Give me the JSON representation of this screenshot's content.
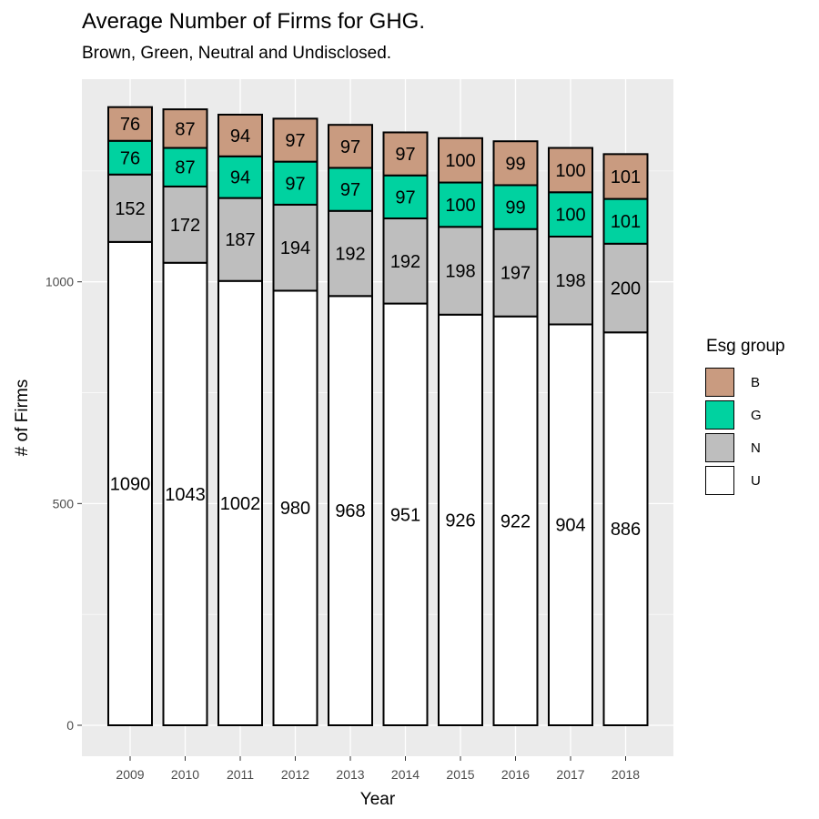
{
  "chart_data": {
    "type": "bar",
    "stacked": true,
    "title": "Average Number of Firms for GHG.",
    "subtitle": "Brown, Green, Neutral and Undisclosed.",
    "xlabel": "Year",
    "ylabel": "# of Firms",
    "categories": [
      "2009",
      "2010",
      "2011",
      "2012",
      "2013",
      "2014",
      "2015",
      "2016",
      "2017",
      "2018"
    ],
    "y_ticks": [
      "0",
      "500",
      "1000"
    ],
    "ylim": [
      -70,
      1450
    ],
    "grid": true,
    "legend": {
      "title": "Esg group",
      "position": "right"
    },
    "series": [
      {
        "name": "U",
        "color": "#ffffff",
        "values": [
          1090,
          1043,
          1002,
          980,
          968,
          951,
          926,
          922,
          904,
          886
        ]
      },
      {
        "name": "N",
        "color": "#bebebe",
        "values": [
          152,
          172,
          187,
          194,
          192,
          192,
          198,
          197,
          198,
          200
        ]
      },
      {
        "name": "G",
        "color": "#00d2a0",
        "values": [
          76,
          87,
          94,
          97,
          97,
          97,
          100,
          99,
          100,
          101
        ]
      },
      {
        "name": "B",
        "color": "#c99b80",
        "values": [
          76,
          87,
          94,
          97,
          97,
          97,
          100,
          99,
          100,
          101
        ]
      }
    ],
    "legend_order": [
      "B",
      "G",
      "N",
      "U"
    ]
  },
  "panel_background": "#ebebeb",
  "gridline_color": "#ffffff"
}
